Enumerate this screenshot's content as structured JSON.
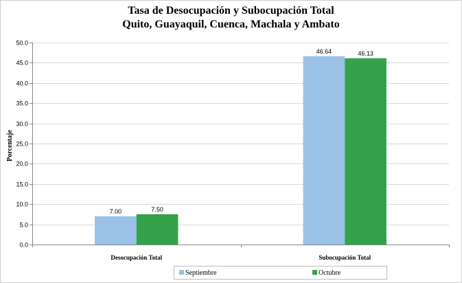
{
  "chart_data": {
    "type": "bar",
    "title": "Tasa de Desocupación y Subocupación Total",
    "subtitle": "Quito, Guayaquil, Cuenca, Machala y Ambato",
    "ylabel": "Porcentaje",
    "xlabel": "",
    "categories": [
      "Desocupación Total",
      "Subocupación Total"
    ],
    "series": [
      {
        "name": "Septiembre",
        "color": "#99c2e6",
        "values": [
          7.0,
          46.64
        ],
        "labels": [
          "7.00",
          "46.64"
        ]
      },
      {
        "name": "Octubre",
        "color": "#34a24a",
        "values": [
          7.5,
          46.13
        ],
        "labels": [
          "7.50",
          "46.13"
        ]
      }
    ],
    "ylim": [
      0,
      50
    ],
    "yticks": [
      "0.0",
      "5.0",
      "10.0",
      "15.0",
      "20.0",
      "25.0",
      "30.0",
      "35.0",
      "40.0",
      "45.0",
      "50.0"
    ],
    "grid": true,
    "legend": "bottom"
  }
}
